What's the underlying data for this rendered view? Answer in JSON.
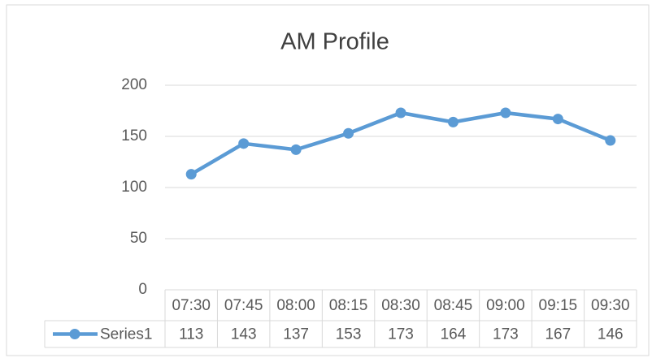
{
  "chart_data": {
    "type": "line",
    "title": "AM Profile",
    "categories": [
      "07:30",
      "07:45",
      "08:00",
      "08:15",
      "08:30",
      "08:45",
      "09:00",
      "09:15",
      "09:30"
    ],
    "series": [
      {
        "name": "Series1",
        "color": "#5b9bd5",
        "values": [
          113,
          143,
          137,
          153,
          173,
          164,
          173,
          167,
          146
        ]
      }
    ],
    "ylim": [
      0,
      200
    ],
    "yticks": [
      0,
      50,
      100,
      150,
      200
    ],
    "grid": true
  }
}
